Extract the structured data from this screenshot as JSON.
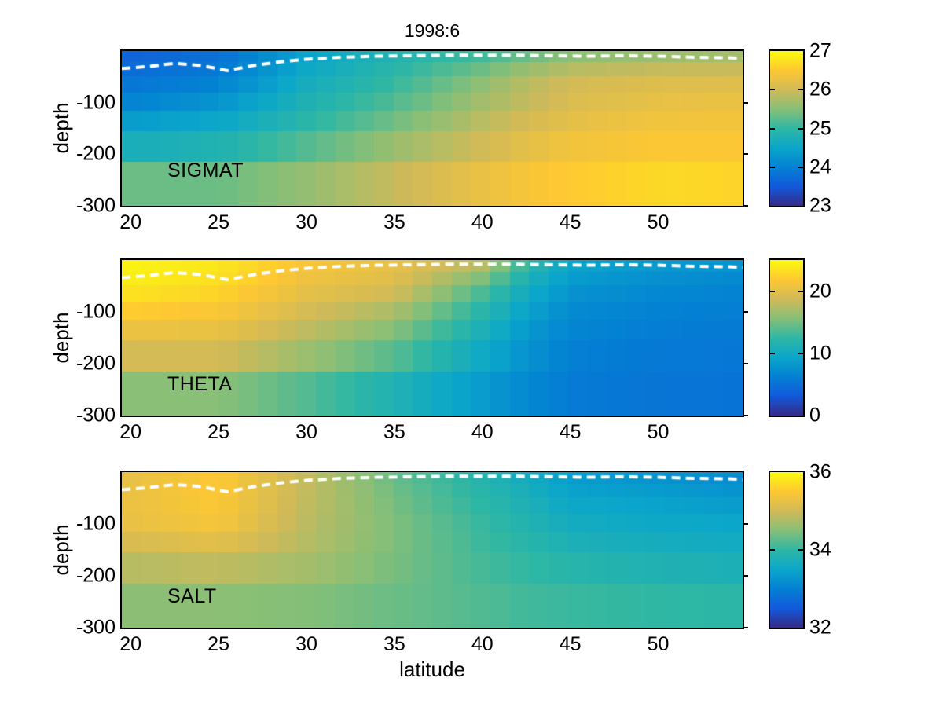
{
  "title": "1998:6",
  "axes": {
    "xlabel": "latitude",
    "ylabel": "depth"
  },
  "chart_data": {
    "type": "heatmap",
    "title": "1998:6",
    "xlabel": "latitude",
    "ylabel": "depth",
    "x_range": [
      19.5,
      54.8
    ],
    "depth_range": [
      0,
      -300
    ],
    "x_ticks": [
      20,
      25,
      30,
      35,
      40,
      45,
      50
    ],
    "y_ticks": [
      -100,
      -200,
      -300
    ],
    "colormap": "parula",
    "render": {
      "n_cols": 32,
      "row_edges": [
        0,
        -22,
        -48,
        -80,
        -115,
        -155,
        -215,
        -300
      ]
    },
    "panels": [
      {
        "name": "SIGMAT",
        "clim": [
          23,
          27
        ],
        "colorbar_ticks": [
          27,
          26,
          25,
          24,
          23
        ],
        "colorbar_inner_ticks": [
          26,
          25,
          24
        ],
        "lats": [
          20,
          25,
          30,
          35,
          40,
          42.5,
          45,
          50,
          55
        ],
        "depths": [
          0,
          -50,
          -100,
          -150,
          -200,
          -250,
          -300
        ],
        "values": [
          [
            23.6,
            23.75,
            24.4,
            24.8,
            25.0,
            25.2,
            25.4,
            25.5,
            25.6
          ],
          [
            23.8,
            23.95,
            24.6,
            25.0,
            25.5,
            25.8,
            26.0,
            26.1,
            26.1
          ],
          [
            24.05,
            24.25,
            24.8,
            25.2,
            25.7,
            25.9,
            26.1,
            26.25,
            26.3
          ],
          [
            24.5,
            24.6,
            25.0,
            25.45,
            25.9,
            26.1,
            26.25,
            26.4,
            26.4
          ],
          [
            24.8,
            24.9,
            25.3,
            25.7,
            26.05,
            26.25,
            26.4,
            26.5,
            26.5
          ],
          [
            25.3,
            25.3,
            25.55,
            25.9,
            26.25,
            26.4,
            26.5,
            26.65,
            26.6
          ],
          [
            25.6,
            25.6,
            25.8,
            26.1,
            26.4,
            26.5,
            26.6,
            26.75,
            26.7
          ]
        ]
      },
      {
        "name": "THETA",
        "clim": [
          0,
          25
        ],
        "colorbar_ticks": [
          20,
          10,
          0
        ],
        "colorbar_inner_ticks": [
          20,
          10
        ],
        "lats": [
          20,
          25,
          30,
          35,
          40,
          42.5,
          45,
          50,
          55
        ],
        "depths": [
          0,
          -50,
          -100,
          -150,
          -200,
          -250,
          -300
        ],
        "values": [
          [
            24.5,
            24.0,
            21.5,
            20.5,
            18.5,
            13.0,
            9.5,
            8.5,
            8.0
          ],
          [
            24.0,
            23.0,
            20.5,
            19.5,
            14.0,
            10.5,
            8.0,
            7.0,
            6.5
          ],
          [
            22.0,
            21.5,
            19.0,
            17.0,
            12.0,
            9.0,
            7.0,
            6.3,
            6.0
          ],
          [
            20.0,
            20.0,
            17.5,
            15.0,
            10.5,
            8.0,
            6.5,
            5.8,
            5.6
          ],
          [
            18.5,
            18.5,
            16.0,
            13.5,
            9.5,
            7.5,
            6.0,
            5.5,
            5.4
          ],
          [
            16.0,
            16.0,
            14.0,
            11.5,
            8.5,
            7.0,
            5.8,
            5.3,
            5.2
          ],
          [
            14.0,
            14.0,
            12.5,
            10.5,
            8.0,
            6.5,
            5.5,
            5.2,
            5.0
          ]
        ]
      },
      {
        "name": "SALT",
        "clim": [
          32,
          36
        ],
        "colorbar_ticks": [
          36,
          34,
          32
        ],
        "colorbar_inner_ticks": [
          34
        ],
        "lats": [
          20,
          25,
          30,
          35,
          40,
          42.5,
          45,
          50,
          55
        ],
        "depths": [
          0,
          -50,
          -100,
          -150,
          -200,
          -250,
          -300
        ],
        "values": [
          [
            35.25,
            35.5,
            34.9,
            34.3,
            33.85,
            33.6,
            33.3,
            33.2,
            33.1
          ],
          [
            35.3,
            35.5,
            34.9,
            34.4,
            33.95,
            33.75,
            33.5,
            33.4,
            33.3
          ],
          [
            35.25,
            35.4,
            34.85,
            34.45,
            34.05,
            33.85,
            33.65,
            33.55,
            33.5
          ],
          [
            35.0,
            35.1,
            34.8,
            34.45,
            34.1,
            33.95,
            33.8,
            33.7,
            33.65
          ],
          [
            34.75,
            34.8,
            34.65,
            34.4,
            34.15,
            34.05,
            33.95,
            33.85,
            33.8
          ],
          [
            34.55,
            34.55,
            34.5,
            34.35,
            34.2,
            34.1,
            34.05,
            34.0,
            33.95
          ],
          [
            34.45,
            34.45,
            34.4,
            34.3,
            34.2,
            34.15,
            34.1,
            34.05,
            34.0
          ]
        ]
      }
    ],
    "mixed_layer_line": {
      "style": "white-dashed",
      "lats": [
        19.5,
        21,
        22.5,
        24,
        25.5,
        27,
        28.5,
        30,
        32,
        34,
        36,
        38,
        40,
        42,
        44,
        46,
        48,
        50,
        52,
        54,
        55.3
      ],
      "depths": [
        -34,
        -30,
        -24,
        -28,
        -38,
        -28,
        -21,
        -16,
        -12,
        -10,
        -9,
        -8,
        -8,
        -8,
        -9,
        -10,
        -9,
        -10,
        -12,
        -13,
        -15
      ]
    }
  },
  "colors": {
    "background": "#ffffff",
    "axis": "#000000",
    "mld_line": "#ffffff",
    "parula_stops": [
      [
        0,
        "#352a87"
      ],
      [
        0.125,
        "#1259db"
      ],
      [
        0.25,
        "#0381d3"
      ],
      [
        0.375,
        "#0ba7ca"
      ],
      [
        0.5,
        "#2eb7a4"
      ],
      [
        0.625,
        "#87bf77"
      ],
      [
        0.75,
        "#d1ba58"
      ],
      [
        0.875,
        "#fec832"
      ],
      [
        1,
        "#f9fb0e"
      ]
    ]
  }
}
